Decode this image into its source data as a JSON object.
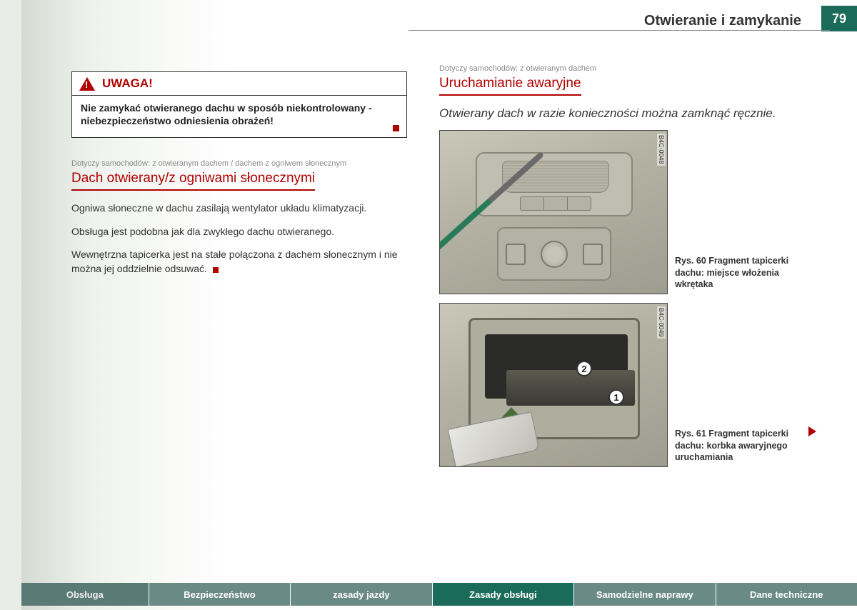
{
  "header": {
    "title": "Otwieranie i zamykanie",
    "page_number": "79"
  },
  "warning": {
    "label": "UWAGA!",
    "body": "Nie zamykać otwieranego dachu w sposób niekontrolowany - niebezpieczeństwo odniesienia obrażeń!"
  },
  "left": {
    "applies": "Dotyczy samochodów: z otwieranym dachem / dachem z ogniwem słonecznym",
    "title": "Dach otwierany/z ogniwami słonecznymi",
    "p1": "Ogniwa słoneczne w dachu zasilają wentylator układu klimatyzacji.",
    "p2": "Obsługa jest podobna jak dla zwykłego dachu otwieranego.",
    "p3": "Wewnętrzna tapicerka jest na stałe połączona z dachem słonecznym i nie można jej oddzielnie odsuwać."
  },
  "right": {
    "applies": "Dotyczy samochodów: z otwieranym dachem",
    "title": "Uruchamianie awaryjne",
    "subtitle": "Otwierany dach w razie konieczności można zamknąć ręcznie.",
    "fig60": {
      "code": "B4C-0048",
      "caption_label": "Rys. 60",
      "caption_text": "Fragment tapicerki dachu: miejsce włożenia wkrętaka"
    },
    "fig61": {
      "code": "B4C-0049",
      "callout1": "1",
      "callout2": "2",
      "caption_label": "Rys. 61",
      "caption_text": "Fragment tapicerki dachu: korbka awaryjnego uruchamiania"
    }
  },
  "tabs": {
    "t1": "Obsługa",
    "t2": "Bezpieczeństwo",
    "t3": "zasady jazdy",
    "t4": "Zasady obsługi",
    "t5": "Samodzielne naprawy",
    "t6": "Dane techniczne"
  },
  "colors": {
    "accent_red": "#b00000",
    "accent_green": "#1a6b5a",
    "tab_bg": "#6a8a85"
  }
}
